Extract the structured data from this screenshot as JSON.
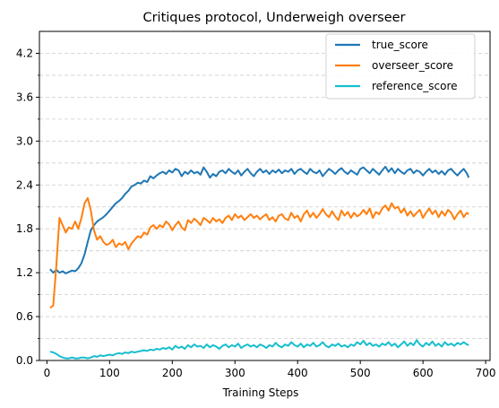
{
  "chart_data": {
    "type": "line",
    "title": "Critiques protocol, Underweigh overseer",
    "xlabel": "Training Steps",
    "ylabel": "",
    "xlim": [
      -12,
      707
    ],
    "ylim": [
      0,
      4.5
    ],
    "xticks": [
      0,
      100,
      200,
      300,
      400,
      500,
      600,
      700
    ],
    "yticks": [
      0.0,
      0.6,
      1.2,
      1.8,
      2.4,
      3.0,
      3.6,
      4.2
    ],
    "ytick_labels": [
      "0.0",
      "0.6",
      "1.2",
      "1.8",
      "2.4",
      "3.0",
      "3.6",
      "4.2"
    ],
    "grid": "horizontal dashed",
    "legend_position": "top-right",
    "series": [
      {
        "name": "true_score",
        "color": "#1f77b4",
        "x": [
          5,
          10,
          15,
          20,
          25,
          30,
          35,
          40,
          45,
          50,
          55,
          60,
          65,
          70,
          75,
          80,
          85,
          90,
          95,
          100,
          105,
          110,
          115,
          120,
          125,
          130,
          135,
          140,
          145,
          150,
          155,
          160,
          165,
          170,
          175,
          180,
          185,
          190,
          195,
          200,
          205,
          210,
          215,
          220,
          225,
          230,
          235,
          240,
          245,
          250,
          255,
          260,
          265,
          270,
          275,
          280,
          285,
          290,
          295,
          300,
          305,
          310,
          315,
          320,
          325,
          330,
          335,
          340,
          345,
          350,
          355,
          360,
          365,
          370,
          375,
          380,
          385,
          390,
          395,
          400,
          405,
          410,
          415,
          420,
          425,
          430,
          435,
          440,
          445,
          450,
          455,
          460,
          465,
          470,
          475,
          480,
          485,
          490,
          495,
          500,
          505,
          510,
          515,
          520,
          525,
          530,
          535,
          540,
          545,
          550,
          555,
          560,
          565,
          570,
          575,
          580,
          585,
          590,
          595,
          600,
          605,
          610,
          615,
          620,
          625,
          630,
          635,
          640,
          645,
          650,
          655,
          660,
          665,
          670,
          673
        ],
        "y": [
          1.25,
          1.2,
          1.24,
          1.2,
          1.22,
          1.19,
          1.21,
          1.23,
          1.22,
          1.26,
          1.33,
          1.45,
          1.62,
          1.78,
          1.85,
          1.9,
          1.93,
          1.96,
          2.0,
          2.05,
          2.1,
          2.15,
          2.18,
          2.22,
          2.28,
          2.32,
          2.38,
          2.4,
          2.43,
          2.42,
          2.46,
          2.44,
          2.52,
          2.49,
          2.53,
          2.56,
          2.58,
          2.55,
          2.6,
          2.57,
          2.62,
          2.6,
          2.52,
          2.58,
          2.55,
          2.6,
          2.56,
          2.58,
          2.54,
          2.64,
          2.58,
          2.5,
          2.55,
          2.52,
          2.58,
          2.6,
          2.56,
          2.62,
          2.58,
          2.55,
          2.6,
          2.53,
          2.58,
          2.62,
          2.56,
          2.52,
          2.58,
          2.62,
          2.57,
          2.6,
          2.55,
          2.6,
          2.57,
          2.61,
          2.56,
          2.6,
          2.58,
          2.62,
          2.55,
          2.6,
          2.62,
          2.58,
          2.55,
          2.62,
          2.58,
          2.56,
          2.6,
          2.52,
          2.57,
          2.62,
          2.59,
          2.55,
          2.6,
          2.63,
          2.58,
          2.55,
          2.6,
          2.57,
          2.54,
          2.62,
          2.64,
          2.6,
          2.56,
          2.62,
          2.58,
          2.54,
          2.6,
          2.65,
          2.58,
          2.63,
          2.56,
          2.62,
          2.58,
          2.55,
          2.6,
          2.62,
          2.56,
          2.6,
          2.58,
          2.53,
          2.58,
          2.62,
          2.57,
          2.6,
          2.55,
          2.59,
          2.54,
          2.6,
          2.62,
          2.57,
          2.53,
          2.58,
          2.62,
          2.56,
          2.5
        ]
      },
      {
        "name": "overseer_score",
        "color": "#ff7f0e",
        "x": [
          5,
          10,
          15,
          20,
          25,
          30,
          35,
          40,
          45,
          50,
          55,
          60,
          65,
          70,
          75,
          80,
          85,
          90,
          95,
          100,
          105,
          110,
          115,
          120,
          125,
          130,
          135,
          140,
          145,
          150,
          155,
          160,
          165,
          170,
          175,
          180,
          185,
          190,
          195,
          200,
          205,
          210,
          215,
          220,
          225,
          230,
          235,
          240,
          245,
          250,
          255,
          260,
          265,
          270,
          275,
          280,
          285,
          290,
          295,
          300,
          305,
          310,
          315,
          320,
          325,
          330,
          335,
          340,
          345,
          350,
          355,
          360,
          365,
          370,
          375,
          380,
          385,
          390,
          395,
          400,
          405,
          410,
          415,
          420,
          425,
          430,
          435,
          440,
          445,
          450,
          455,
          460,
          465,
          470,
          475,
          480,
          485,
          490,
          495,
          500,
          505,
          510,
          515,
          520,
          525,
          530,
          535,
          540,
          545,
          550,
          555,
          560,
          565,
          570,
          575,
          580,
          585,
          590,
          595,
          600,
          605,
          610,
          615,
          620,
          625,
          630,
          635,
          640,
          645,
          650,
          655,
          660,
          665,
          670,
          673
        ],
        "y": [
          0.72,
          0.75,
          1.3,
          1.95,
          1.85,
          1.75,
          1.82,
          1.8,
          1.9,
          1.8,
          1.95,
          2.15,
          2.22,
          2.05,
          1.78,
          1.65,
          1.7,
          1.62,
          1.58,
          1.6,
          1.65,
          1.55,
          1.6,
          1.58,
          1.62,
          1.52,
          1.6,
          1.65,
          1.7,
          1.68,
          1.75,
          1.72,
          1.82,
          1.85,
          1.8,
          1.85,
          1.82,
          1.9,
          1.86,
          1.78,
          1.85,
          1.9,
          1.82,
          1.78,
          1.92,
          1.88,
          1.94,
          1.9,
          1.85,
          1.95,
          1.92,
          1.88,
          1.95,
          1.9,
          1.93,
          1.88,
          1.95,
          1.98,
          1.92,
          2.0,
          1.95,
          1.98,
          1.92,
          1.96,
          2.0,
          1.95,
          1.98,
          1.93,
          1.97,
          2.0,
          1.92,
          1.96,
          1.9,
          1.98,
          2.0,
          1.94,
          1.92,
          2.02,
          1.95,
          1.98,
          1.9,
          2.0,
          2.05,
          1.96,
          2.02,
          1.95,
          2.0,
          2.07,
          2.0,
          1.96,
          2.04,
          1.97,
          1.92,
          2.05,
          1.98,
          2.03,
          1.95,
          2.02,
          1.97,
          2.0,
          2.06,
          2.0,
          2.08,
          1.95,
          2.03,
          2.0,
          2.08,
          2.12,
          2.05,
          2.15,
          2.08,
          2.1,
          2.02,
          2.08,
          1.98,
          2.04,
          1.97,
          2.02,
          2.06,
          1.95,
          2.02,
          2.08,
          2.0,
          2.05,
          1.96,
          2.04,
          1.98,
          2.06,
          2.02,
          1.93,
          2.0,
          2.05,
          1.96,
          2.02,
          2.0
        ]
      },
      {
        "name": "reference_score",
        "color": "#17becf",
        "x": [
          5,
          10,
          15,
          20,
          25,
          30,
          35,
          40,
          45,
          50,
          55,
          60,
          65,
          70,
          75,
          80,
          85,
          90,
          95,
          100,
          105,
          110,
          115,
          120,
          125,
          130,
          135,
          140,
          145,
          150,
          155,
          160,
          165,
          170,
          175,
          180,
          185,
          190,
          195,
          200,
          205,
          210,
          215,
          220,
          225,
          230,
          235,
          240,
          245,
          250,
          255,
          260,
          265,
          270,
          275,
          280,
          285,
          290,
          295,
          300,
          305,
          310,
          315,
          320,
          325,
          330,
          335,
          340,
          345,
          350,
          355,
          360,
          365,
          370,
          375,
          380,
          385,
          390,
          395,
          400,
          405,
          410,
          415,
          420,
          425,
          430,
          435,
          440,
          445,
          450,
          455,
          460,
          465,
          470,
          475,
          480,
          485,
          490,
          495,
          500,
          505,
          510,
          515,
          520,
          525,
          530,
          535,
          540,
          545,
          550,
          555,
          560,
          565,
          570,
          575,
          580,
          585,
          590,
          595,
          600,
          605,
          610,
          615,
          620,
          625,
          630,
          635,
          640,
          645,
          650,
          655,
          660,
          665,
          670,
          673
        ],
        "y": [
          0.12,
          0.11,
          0.09,
          0.06,
          0.04,
          0.03,
          0.03,
          0.04,
          0.03,
          0.03,
          0.04,
          0.04,
          0.03,
          0.04,
          0.06,
          0.05,
          0.07,
          0.06,
          0.07,
          0.08,
          0.07,
          0.09,
          0.1,
          0.09,
          0.11,
          0.1,
          0.12,
          0.11,
          0.12,
          0.13,
          0.14,
          0.13,
          0.15,
          0.14,
          0.16,
          0.15,
          0.17,
          0.16,
          0.18,
          0.15,
          0.2,
          0.17,
          0.19,
          0.16,
          0.21,
          0.18,
          0.22,
          0.19,
          0.2,
          0.17,
          0.22,
          0.18,
          0.21,
          0.19,
          0.16,
          0.2,
          0.22,
          0.18,
          0.21,
          0.19,
          0.23,
          0.17,
          0.2,
          0.22,
          0.19,
          0.21,
          0.18,
          0.22,
          0.2,
          0.17,
          0.21,
          0.19,
          0.24,
          0.2,
          0.18,
          0.22,
          0.2,
          0.25,
          0.21,
          0.19,
          0.23,
          0.18,
          0.22,
          0.2,
          0.24,
          0.19,
          0.21,
          0.25,
          0.2,
          0.18,
          0.22,
          0.2,
          0.23,
          0.19,
          0.21,
          0.18,
          0.22,
          0.2,
          0.25,
          0.22,
          0.27,
          0.21,
          0.24,
          0.2,
          0.22,
          0.19,
          0.23,
          0.21,
          0.25,
          0.2,
          0.23,
          0.18,
          0.22,
          0.26,
          0.2,
          0.24,
          0.21,
          0.28,
          0.22,
          0.19,
          0.24,
          0.21,
          0.26,
          0.2,
          0.23,
          0.19,
          0.25,
          0.21,
          0.23,
          0.2,
          0.24,
          0.22,
          0.25,
          0.22,
          0.21
        ]
      }
    ]
  }
}
